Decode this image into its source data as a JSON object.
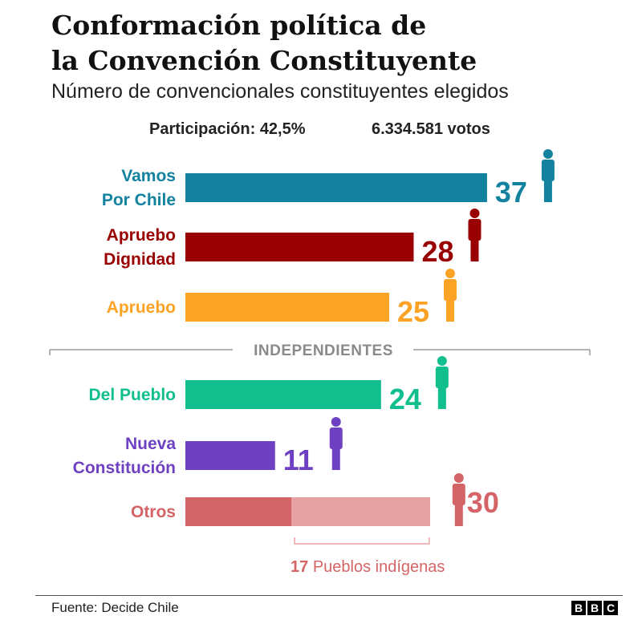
{
  "title_line1": "Conformación política de",
  "title_line2": "la Convención Constituyente",
  "subtitle": "Número de convencionales constituyentes elegidos",
  "participation": "Participación: 42,5%",
  "votes": "6.334.581 votos",
  "source": "Fuente: Decide Chile",
  "logo": [
    "B",
    "B",
    "C"
  ],
  "chart_data": {
    "type": "bar",
    "orientation": "horizontal",
    "categories": [
      [
        "Vamos",
        "Por Chile"
      ],
      [
        "Apruebo",
        "Dignidad"
      ],
      [
        "Apruebo"
      ],
      [
        "Del Pueblo"
      ],
      [
        "Nueva",
        "Constitución"
      ],
      [
        "Otros"
      ]
    ],
    "values": [
      37,
      28,
      25,
      24,
      11,
      30
    ],
    "value_labels": [
      "37",
      "28",
      "25",
      "24",
      "11",
      "30"
    ],
    "colors": [
      "#13829f",
      "#990000",
      "#fca326",
      "#11bf8e",
      "#6e41c2",
      "#d46466"
    ],
    "separator_label": "INDEPENDIENTES",
    "separator_before_index": 3,
    "sub_segment": {
      "category_index": 5,
      "value": 17,
      "label_value": "17",
      "label_text": "Pueblos indígenas",
      "color": "#e8a1a3"
    },
    "icon": "person-icon"
  }
}
